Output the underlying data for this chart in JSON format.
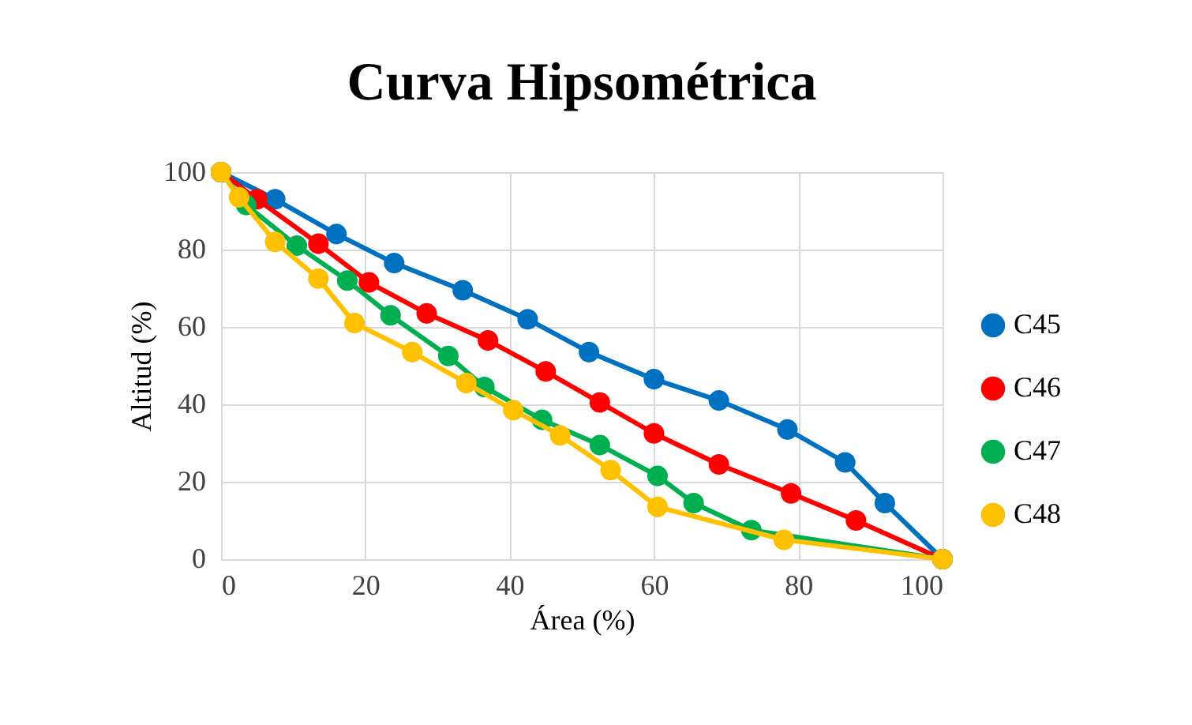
{
  "chart_data": {
    "type": "line",
    "title": "Curva Hipsométrica",
    "xlabel": "Área (%)",
    "ylabel": "Altitud (%)",
    "xlim": [
      0,
      100
    ],
    "xticks": [
      0,
      20,
      40,
      60,
      80,
      100
    ],
    "ylim": [
      0,
      100
    ],
    "yticks": [
      0,
      20,
      40,
      60,
      80,
      100
    ],
    "grid": true,
    "legend": "right",
    "marker": "circle",
    "line_style": "solid",
    "series": [
      {
        "name": "C45",
        "color": "#0070c0",
        "x": [
          0,
          7.5,
          16,
          24,
          33.5,
          42.5,
          51,
          60,
          69,
          78.5,
          86.5,
          92,
          100
        ],
        "values": [
          100,
          93,
          84,
          76.5,
          69.5,
          62,
          53.5,
          46.5,
          41,
          33.5,
          25,
          14.5,
          0
        ]
      },
      {
        "name": "C46",
        "color": "#ff0000",
        "x": [
          0,
          5,
          13.5,
          20.5,
          28.5,
          37,
          45,
          52.5,
          60,
          69,
          79,
          88,
          100
        ],
        "values": [
          100,
          93,
          81.5,
          71.5,
          63.5,
          56.5,
          48.5,
          40.5,
          32.5,
          24.5,
          17,
          10,
          0
        ]
      },
      {
        "name": "C47",
        "color": "#00b050",
        "x": [
          0,
          3.5,
          10.5,
          17.5,
          23.5,
          31.5,
          36.5,
          44.5,
          52.5,
          60.5,
          65.5,
          73.5,
          100
        ],
        "values": [
          100,
          91.5,
          81,
          72,
          63,
          52.5,
          44.5,
          36,
          29.5,
          21.5,
          14.5,
          7.5,
          0
        ]
      },
      {
        "name": "C48",
        "color": "#ffc000",
        "x": [
          0,
          2.5,
          7.5,
          13.5,
          18.5,
          26.5,
          34,
          40.5,
          47,
          54,
          60.5,
          78,
          100
        ],
        "values": [
          100,
          93.5,
          82,
          72.5,
          61,
          53.5,
          45.5,
          38.5,
          32,
          23,
          13.5,
          5,
          0
        ]
      }
    ]
  }
}
